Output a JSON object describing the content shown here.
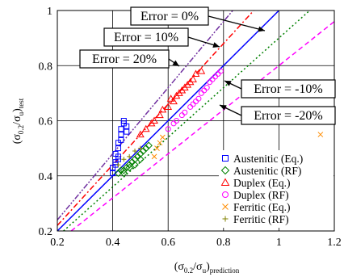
{
  "chart_data": {
    "type": "scatter",
    "xlabel_base": "(σ",
    "xlabel_sub1": "0.2",
    "xlabel_mid": "/σ",
    "xlabel_sub2": "u",
    "xlabel_close": ")",
    "xlabel_sub3": "prediction",
    "ylabel_base": "(σ",
    "ylabel_sub1": "0.2",
    "ylabel_mid": "/σ",
    "ylabel_sub2": "u",
    "ylabel_close": ")",
    "ylabel_sub3": "test",
    "xlim": [
      0.2,
      1.2
    ],
    "ylim": [
      0.2,
      1.0
    ],
    "xticks": [
      "0.2",
      "0.4",
      "0.6",
      "0.8",
      "1",
      "1.2"
    ],
    "yticks": [
      "0.2",
      "0.4",
      "0.6",
      "0.8",
      "1"
    ],
    "grid": true,
    "legend_placement": "bottom-right",
    "error_lines": [
      {
        "label": "Error = 0%",
        "slope": 1.0,
        "color": "#0000ff",
        "dash": "solid"
      },
      {
        "label": "Error = 10%",
        "slope": 1.1,
        "color": "#ff0000",
        "dash": "dashdot"
      },
      {
        "label": "Error = 20%",
        "slope": 1.2,
        "color": "#7030a0",
        "dash": "dashdotdot"
      },
      {
        "label": "Error = -10%",
        "slope": 0.9,
        "color": "#008000",
        "dash": "dotted"
      },
      {
        "label": "Error = -20%",
        "slope": 0.8,
        "color": "#ff00ff",
        "dash": "dashed"
      }
    ],
    "series": [
      {
        "name": "Austenitic (Eq.)",
        "marker": "square",
        "color": "#0000ff",
        "points": [
          [
            0.4,
            0.41
          ],
          [
            0.4,
            0.43
          ],
          [
            0.41,
            0.45
          ],
          [
            0.41,
            0.48
          ],
          [
            0.42,
            0.5
          ],
          [
            0.42,
            0.52
          ],
          [
            0.43,
            0.55
          ],
          [
            0.43,
            0.57
          ],
          [
            0.44,
            0.59
          ],
          [
            0.44,
            0.6
          ],
          [
            0.45,
            0.58
          ],
          [
            0.45,
            0.56
          ],
          [
            0.42,
            0.47
          ],
          [
            0.43,
            0.53
          ],
          [
            0.41,
            0.44
          ],
          [
            0.42,
            0.46
          ]
        ]
      },
      {
        "name": "Austenitic (RF)",
        "marker": "diamond",
        "color": "#008000",
        "points": [
          [
            0.42,
            0.41
          ],
          [
            0.43,
            0.42
          ],
          [
            0.44,
            0.42
          ],
          [
            0.45,
            0.43
          ],
          [
            0.46,
            0.44
          ],
          [
            0.47,
            0.45
          ],
          [
            0.48,
            0.46
          ],
          [
            0.49,
            0.47
          ],
          [
            0.5,
            0.48
          ],
          [
            0.51,
            0.49
          ],
          [
            0.52,
            0.5
          ],
          [
            0.53,
            0.51
          ],
          [
            0.44,
            0.41
          ],
          [
            0.46,
            0.43
          ],
          [
            0.48,
            0.44
          ],
          [
            0.5,
            0.46
          ]
        ]
      },
      {
        "name": "Duplex (Eq.)",
        "marker": "triangle",
        "color": "#ff0000",
        "points": [
          [
            0.5,
            0.55
          ],
          [
            0.52,
            0.57
          ],
          [
            0.54,
            0.59
          ],
          [
            0.55,
            0.6
          ],
          [
            0.57,
            0.62
          ],
          [
            0.58,
            0.64
          ],
          [
            0.6,
            0.65
          ],
          [
            0.62,
            0.67
          ],
          [
            0.63,
            0.69
          ],
          [
            0.65,
            0.71
          ],
          [
            0.66,
            0.72
          ],
          [
            0.68,
            0.74
          ],
          [
            0.69,
            0.75
          ],
          [
            0.7,
            0.77
          ],
          [
            0.72,
            0.78
          ],
          [
            0.61,
            0.68
          ],
          [
            0.64,
            0.7
          ],
          [
            0.67,
            0.73
          ]
        ]
      },
      {
        "name": "Duplex (RF)",
        "marker": "circle",
        "color": "#ff00ff",
        "points": [
          [
            0.6,
            0.57
          ],
          [
            0.62,
            0.59
          ],
          [
            0.63,
            0.6
          ],
          [
            0.65,
            0.62
          ],
          [
            0.66,
            0.63
          ],
          [
            0.68,
            0.65
          ],
          [
            0.69,
            0.66
          ],
          [
            0.71,
            0.68
          ],
          [
            0.72,
            0.7
          ],
          [
            0.74,
            0.72
          ],
          [
            0.75,
            0.74
          ],
          [
            0.76,
            0.75
          ],
          [
            0.77,
            0.76
          ],
          [
            0.78,
            0.77
          ],
          [
            0.79,
            0.78
          ],
          [
            0.7,
            0.67
          ],
          [
            0.73,
            0.71
          ]
        ]
      },
      {
        "name": "Ferritic (Eq.)",
        "marker": "x",
        "color": "#ff8c00",
        "points": [
          [
            0.55,
            0.47
          ],
          [
            0.56,
            0.5
          ],
          [
            0.57,
            0.52
          ],
          [
            0.58,
            0.54
          ],
          [
            1.15,
            0.55
          ]
        ]
      },
      {
        "name": "Ferritic (RF)",
        "marker": "plus",
        "color": "#808000",
        "points": [
          [
            0.42,
            0.44
          ],
          [
            0.44,
            0.46
          ],
          [
            0.46,
            0.47
          ],
          [
            0.48,
            0.49
          ],
          [
            0.5,
            0.5
          ]
        ]
      }
    ]
  }
}
